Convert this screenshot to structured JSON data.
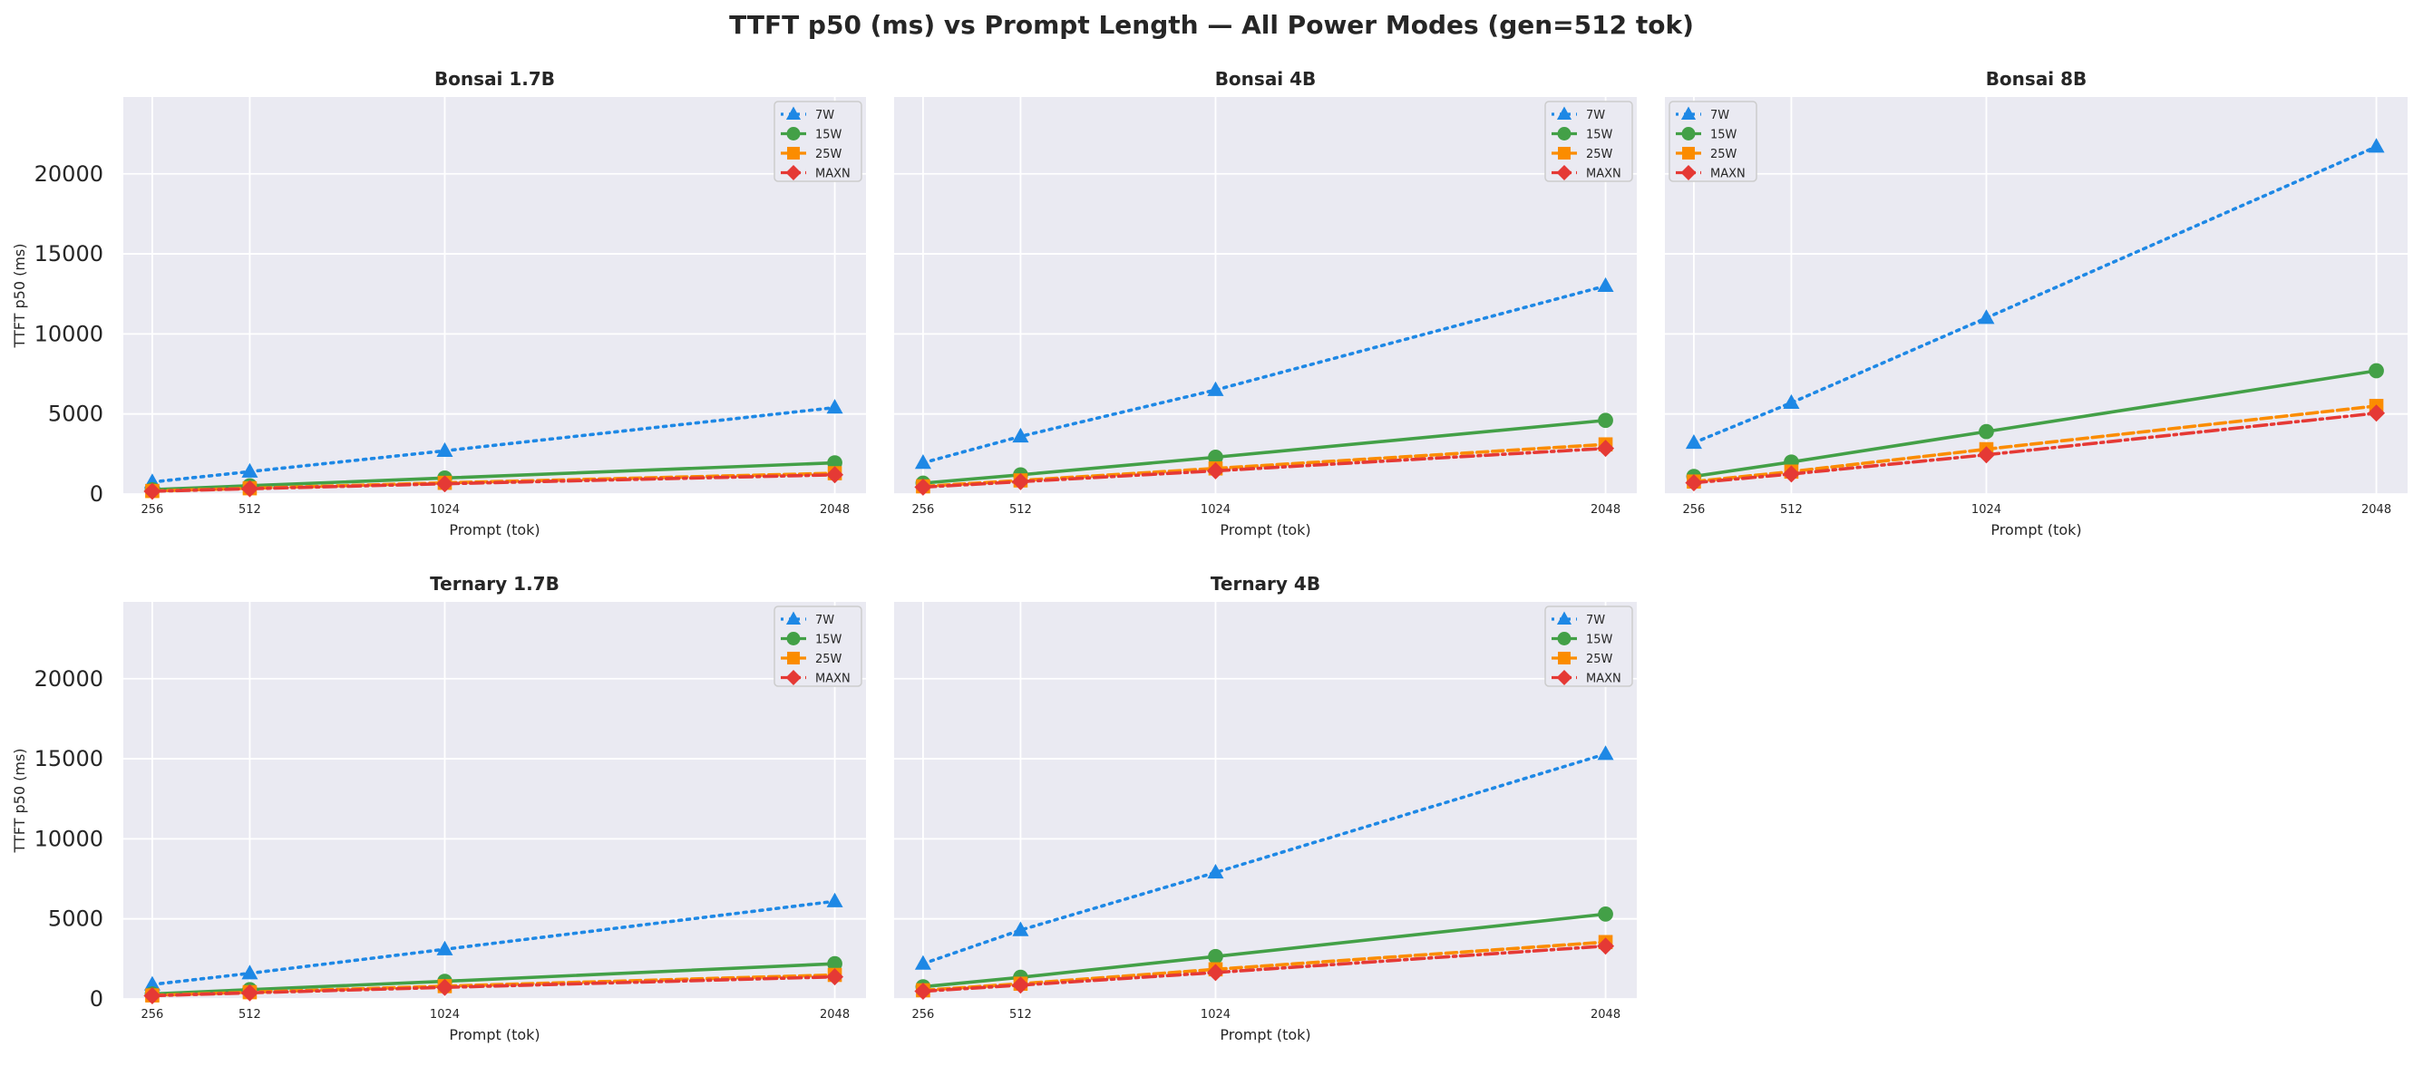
{
  "figure": {
    "title": "TTFT p50 (ms) vs Prompt Length — All Power Modes (gen=512 tok)"
  },
  "series_styles": [
    {
      "name": "7W",
      "color": "#1E88E5",
      "dash": "dotted",
      "marker": "triangle"
    },
    {
      "name": "15W",
      "color": "#43A047",
      "dash": "solid",
      "marker": "circle"
    },
    {
      "name": "25W",
      "color": "#FB8C00",
      "dash": "dashed",
      "marker": "square"
    },
    {
      "name": "MAXN",
      "color": "#E53935",
      "dash": "dashdot",
      "marker": "diamond"
    }
  ],
  "chart_data": [
    {
      "type": "line",
      "title": "Bonsai 1.7B",
      "xlabel": "Prompt (tok)",
      "ylabel": "TTFT p50 (ms)",
      "x": [
        256,
        512,
        1024,
        2048
      ],
      "xlim": [
        180,
        2130
      ],
      "ylim": [
        0,
        24800
      ],
      "yticks": [
        0,
        5000,
        10000,
        15000,
        20000
      ],
      "grid": true,
      "legend": "top-right",
      "series": [
        {
          "name": "7W",
          "values": [
            750,
            1400,
            2700,
            5400
          ]
        },
        {
          "name": "15W",
          "values": [
            270,
            520,
            1000,
            1950
          ]
        },
        {
          "name": "25W",
          "values": [
            190,
            360,
            700,
            1300
          ]
        },
        {
          "name": "MAXN",
          "values": [
            170,
            330,
            640,
            1200
          ]
        }
      ]
    },
    {
      "type": "line",
      "title": "Bonsai 4B",
      "xlabel": "Prompt (tok)",
      "ylabel": "",
      "x": [
        256,
        512,
        1024,
        2048
      ],
      "xlim": [
        180,
        2130
      ],
      "ylim": [
        0,
        24800
      ],
      "yticks": [
        0,
        5000,
        10000,
        15000,
        20000
      ],
      "grid": true,
      "legend": "top-right",
      "series": [
        {
          "name": "7W",
          "values": [
            1950,
            3600,
            6500,
            13000
          ]
        },
        {
          "name": "15W",
          "values": [
            680,
            1200,
            2300,
            4600
          ]
        },
        {
          "name": "25W",
          "values": [
            480,
            850,
            1600,
            3100
          ]
        },
        {
          "name": "MAXN",
          "values": [
            430,
            770,
            1450,
            2850
          ]
        }
      ]
    },
    {
      "type": "line",
      "title": "Bonsai 8B",
      "xlabel": "Prompt (tok)",
      "ylabel": "",
      "x": [
        256,
        512,
        1024,
        2048
      ],
      "xlim": [
        180,
        2130
      ],
      "ylim": [
        0,
        24800
      ],
      "yticks": [
        0,
        5000,
        10000,
        15000,
        20000
      ],
      "grid": true,
      "legend": "top-left",
      "series": [
        {
          "name": "7W",
          "values": [
            3200,
            5700,
            11000,
            21700
          ]
        },
        {
          "name": "15W",
          "values": [
            1100,
            2000,
            3900,
            7700
          ]
        },
        {
          "name": "25W",
          "values": [
            780,
            1400,
            2800,
            5500
          ]
        },
        {
          "name": "MAXN",
          "values": [
            700,
            1250,
            2450,
            5050
          ]
        }
      ]
    },
    {
      "type": "line",
      "title": "Ternary 1.7B",
      "xlabel": "Prompt (tok)",
      "ylabel": "TTFT p50 (ms)",
      "x": [
        256,
        512,
        1024,
        2048
      ],
      "xlim": [
        180,
        2130
      ],
      "ylim": [
        0,
        24800
      ],
      "yticks": [
        0,
        5000,
        10000,
        15000,
        20000
      ],
      "grid": true,
      "legend": "top-right",
      "series": [
        {
          "name": "7W",
          "values": [
            900,
            1600,
            3100,
            6100
          ]
        },
        {
          "name": "15W",
          "values": [
            310,
            580,
            1100,
            2200
          ]
        },
        {
          "name": "25W",
          "values": [
            220,
            420,
            800,
            1500
          ]
        },
        {
          "name": "MAXN",
          "values": [
            200,
            380,
            720,
            1380
          ]
        }
      ]
    },
    {
      "type": "line",
      "title": "Ternary 4B",
      "xlabel": "Prompt (tok)",
      "ylabel": "",
      "x": [
        256,
        512,
        1024,
        2048
      ],
      "xlim": [
        180,
        2130
      ],
      "ylim": [
        0,
        24800
      ],
      "yticks": [
        0,
        5000,
        10000,
        15000,
        20000
      ],
      "grid": true,
      "legend": "top-right",
      "series": [
        {
          "name": "7W",
          "values": [
            2200,
            4300,
            7900,
            15300
          ]
        },
        {
          "name": "15W",
          "values": [
            760,
            1350,
            2650,
            5300
          ]
        },
        {
          "name": "25W",
          "values": [
            540,
            950,
            1850,
            3550
          ]
        },
        {
          "name": "MAXN",
          "values": [
            480,
            860,
            1650,
            3300
          ]
        }
      ]
    }
  ]
}
